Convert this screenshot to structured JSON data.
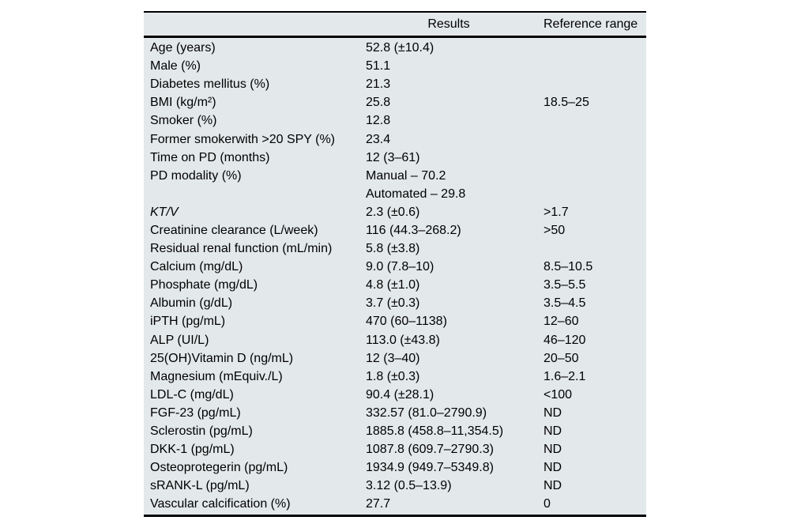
{
  "table": {
    "columns": {
      "param": "",
      "results": "Results",
      "reference": "Reference range"
    },
    "style": {
      "band_color": "#e3e8ea",
      "rule_color": "#000000",
      "text_color": "#000000"
    },
    "rows": [
      {
        "label": "Age (years)",
        "results": "52.8 (±10.4)",
        "reference": ""
      },
      {
        "label": "Male (%)",
        "results": "51.1",
        "reference": ""
      },
      {
        "label": "Diabetes mellitus (%)",
        "results": "21.3",
        "reference": ""
      },
      {
        "label": "BMI (kg/m²)",
        "results": "25.8",
        "reference": "18.5–25"
      },
      {
        "label": "Smoker (%)",
        "results": "12.8",
        "reference": ""
      },
      {
        "label": "Former smokerwith >20 SPY (%)",
        "results": "23.4",
        "reference": ""
      },
      {
        "label": "Time on PD (months)",
        "results": "12 (3–61)",
        "reference": ""
      },
      {
        "label": "PD modality (%)",
        "results": "Manual – 70.2",
        "reference": ""
      },
      {
        "label": "",
        "results": "Automated – 29.8",
        "reference": ""
      },
      {
        "label": "KT/V",
        "italic": true,
        "results": "2.3 (±0.6)",
        "reference": ">1.7"
      },
      {
        "label": "Creatinine clearance (L/week)",
        "results": "116 (44.3–268.2)",
        "reference": ">50"
      },
      {
        "label": "Residual renal function (mL/min)",
        "results": "5.8 (±3.8)",
        "reference": ""
      },
      {
        "label": "Calcium (mg/dL)",
        "results": "9.0 (7.8–10)",
        "reference": "8.5–10.5"
      },
      {
        "label": "Phosphate (mg/dL)",
        "results": "4.8 (±1.0)",
        "reference": "3.5–5.5"
      },
      {
        "label": "Albumin (g/dL)",
        "results": "3.7 (±0.3)",
        "reference": "3.5–4.5"
      },
      {
        "label": "iPTH (pg/mL)",
        "results": "470 (60–1138)",
        "reference": "12–60"
      },
      {
        "label": "ALP (UI/L)",
        "results": "113.0 (±43.8)",
        "reference": "46–120"
      },
      {
        "label": "25(OH)Vitamin D (ng/mL)",
        "results": "12 (3–40)",
        "reference": "20–50"
      },
      {
        "label": "Magnesium (mEquiv./L)",
        "results": "1.8 (±0.3)",
        "reference": "1.6–2.1"
      },
      {
        "label": "LDL-C (mg/dL)",
        "results": "90.4 (±28.1)",
        "reference": "<100"
      },
      {
        "label": "FGF-23 (pg/mL)",
        "results": "332.57 (81.0–2790.9)",
        "reference": "ND"
      },
      {
        "label": "Sclerostin (pg/mL)",
        "results": "1885.8 (458.8–11,354.5)",
        "reference": "ND"
      },
      {
        "label": "DKK-1 (pg/mL)",
        "results": "1087.8 (609.7–2790.3)",
        "reference": "ND"
      },
      {
        "label": "Osteoprotegerin (pg/mL)",
        "results": "1934.9 (949.7–5349.8)",
        "reference": "ND"
      },
      {
        "label": "sRANK-L (pg/mL)",
        "results": "3.12 (0.5–13.9)",
        "reference": "ND"
      },
      {
        "label": "Vascular calcification (%)",
        "results": "27.7",
        "reference": "0"
      }
    ]
  }
}
